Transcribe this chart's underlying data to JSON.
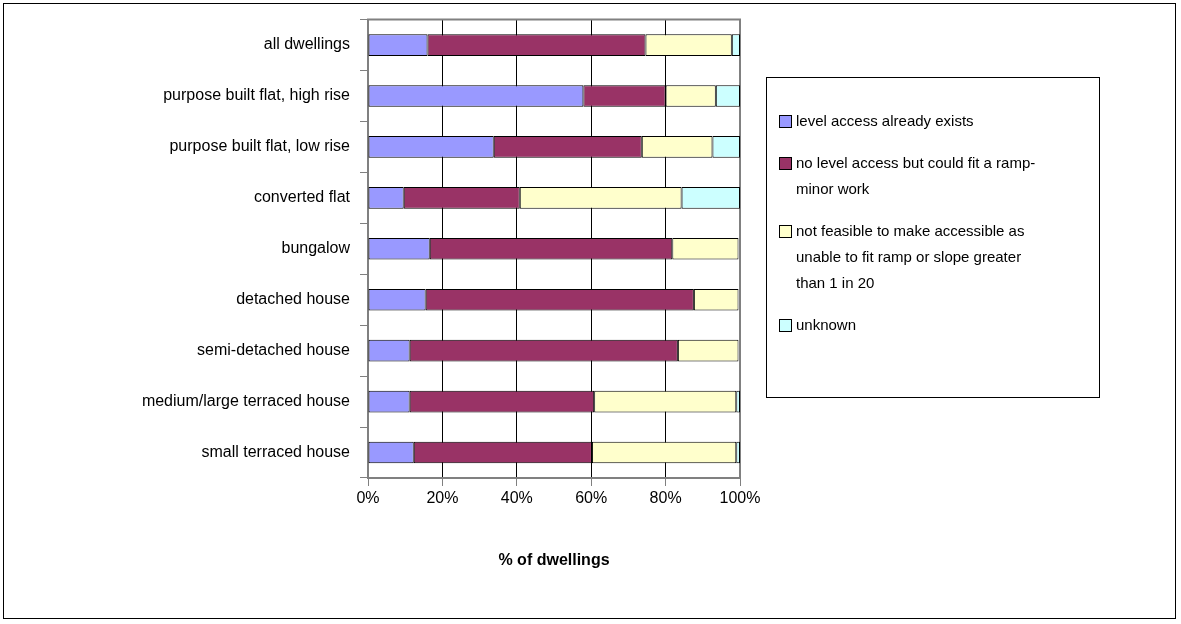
{
  "chart_data": {
    "type": "bar",
    "orientation": "horizontal",
    "stacked": true,
    "xlabel": "% of dwellings",
    "categories": [
      "all dwellings",
      "purpose built flat, high rise",
      "purpose built flat, low rise",
      "converted flat",
      "bungalow",
      "detached house",
      "semi-detached house",
      "medium/large terraced house",
      "small terraced house"
    ],
    "series": [
      {
        "name": "level access already exists",
        "color": "#9999ff",
        "values": [
          16.0,
          57.9,
          33.8,
          9.6,
          16.6,
          15.5,
          11.2,
          11.2,
          12.3
        ]
      },
      {
        "name": "no level access but could fit a ramp-minor work",
        "color": "#993366",
        "values": [
          58.6,
          22.1,
          39.8,
          31.2,
          65.2,
          72.1,
          72.1,
          49.6,
          47.9
        ]
      },
      {
        "name": "not feasible to make accessible as unable to fit ramp or slope greater than 1 in 20",
        "color": "#ffffcc",
        "values": [
          23.2,
          13.5,
          19.0,
          43.5,
          17.8,
          12.0,
          16.3,
          38.2,
          38.8
        ]
      },
      {
        "name": "unknown",
        "color": "#ccffff",
        "values": [
          2.2,
          6.5,
          7.4,
          15.7,
          null,
          null,
          null,
          1.0,
          1.0
        ]
      }
    ],
    "xlim": [
      0,
      100
    ],
    "xticks": [
      {
        "value": 0,
        "label": "0%"
      },
      {
        "value": 20,
        "label": "20%"
      },
      {
        "value": 40,
        "label": "40%"
      },
      {
        "value": 60,
        "label": "60%"
      },
      {
        "value": 80,
        "label": "80%"
      },
      {
        "value": 100,
        "label": "100%"
      }
    ],
    "grid": "x",
    "legend": "right"
  }
}
